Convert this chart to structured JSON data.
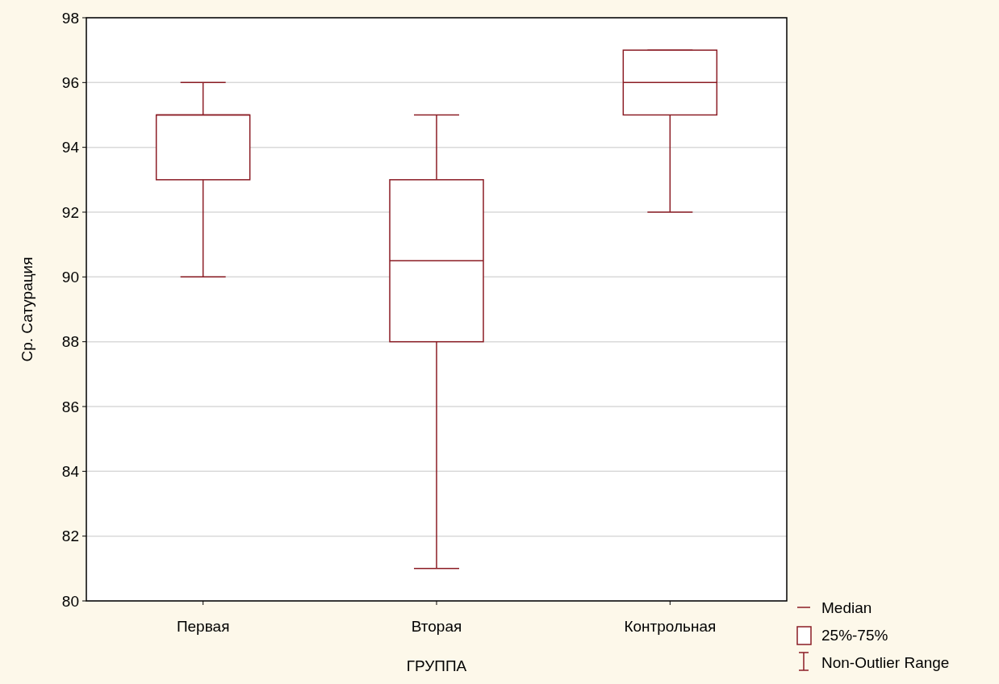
{
  "chart_data": {
    "type": "box",
    "xlabel": "ГРУППА",
    "ylabel": "Ср. Сатурация",
    "categories": [
      "Первая",
      "Вторая",
      "Контрольная"
    ],
    "boxes": [
      {
        "low": 90,
        "q1": 93,
        "median": 95,
        "q3": 95,
        "high": 96
      },
      {
        "low": 81,
        "q1": 88,
        "median": 90.5,
        "q3": 93,
        "high": 95
      },
      {
        "low": 92,
        "q1": 95,
        "median": 96,
        "q3": 97,
        "high": 97
      }
    ],
    "color": "#8b1c24",
    "ylim": [
      80,
      98
    ],
    "yticks": [
      80,
      82,
      84,
      86,
      88,
      90,
      92,
      94,
      96,
      98
    ],
    "grid": "y",
    "annotations": [
      "Median",
      "25%-75%",
      "Non-Outlier Range"
    ]
  }
}
